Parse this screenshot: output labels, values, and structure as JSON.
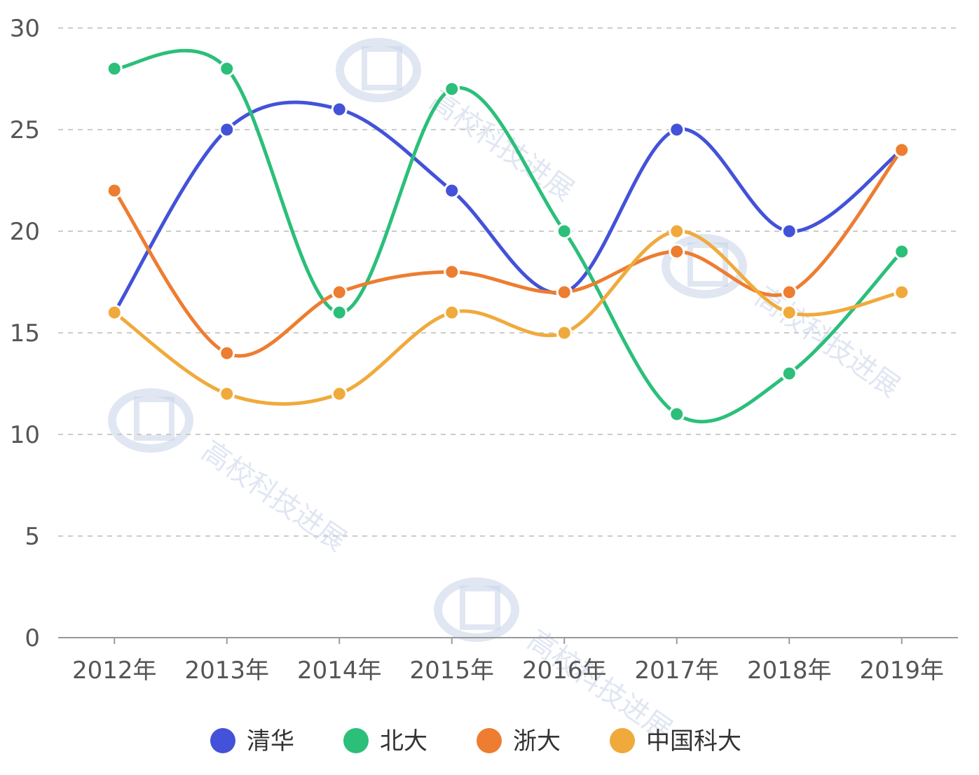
{
  "chart_data": {
    "type": "line",
    "smooth": true,
    "categories": [
      "2012年",
      "2013年",
      "2014年",
      "2015年",
      "2016年",
      "2017年",
      "2018年",
      "2019年"
    ],
    "ylim": [
      0,
      30
    ],
    "yticks": [
      0,
      5,
      10,
      15,
      20,
      25,
      30
    ],
    "grid": true,
    "legend_position": "bottom",
    "series": [
      {
        "name": "清华",
        "color": "#4352d8",
        "values": [
          16,
          25,
          26,
          22,
          17,
          25,
          20,
          24
        ]
      },
      {
        "name": "北大",
        "color": "#2bbf7a",
        "values": [
          28,
          28,
          16,
          27,
          20,
          11,
          13,
          19
        ]
      },
      {
        "name": "浙大",
        "color": "#ed7d31",
        "values": [
          22,
          14,
          17,
          18,
          17,
          19,
          17,
          24
        ]
      },
      {
        "name": "中国科大",
        "color": "#f0aa3c",
        "values": [
          16,
          12,
          12,
          16,
          15,
          20,
          16,
          17
        ]
      }
    ]
  },
  "watermark": "高校科技进展"
}
